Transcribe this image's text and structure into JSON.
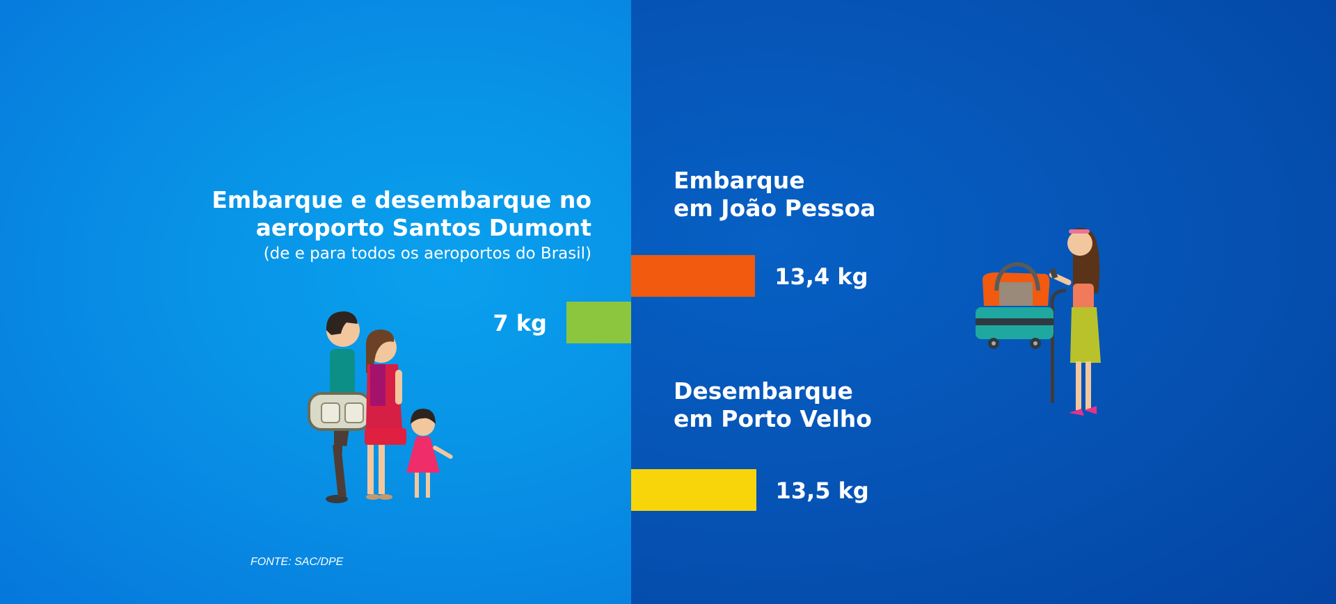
{
  "left": {
    "title_line1": "Embarque e desembarque no",
    "title_line2": "aeroporto Santos Dumont",
    "subtitle": "(de e para todos os aeroportos do Brasil)",
    "source": "FONTE: SAC/DPE"
  },
  "right": {
    "label1_line1": "Embarque",
    "label1_line2": "em João Pessoa",
    "label2_line1": "Desembarque",
    "label2_line2": "em Porto Velho"
  },
  "chart_data": {
    "type": "bar",
    "unit": "kg",
    "categories": [
      "Santos Dumont",
      "Embarque em João Pessoa",
      "Desembarque em Porto Velho"
    ],
    "values": [
      7,
      13.4,
      13.5
    ],
    "value_labels": [
      "7 kg",
      "13,4 kg",
      "13,5 kg"
    ],
    "colors": [
      "#8cc63f",
      "#f15a0f",
      "#f7d50a"
    ],
    "background_colors": {
      "left": "#0891e6",
      "right": "#0553b5"
    }
  }
}
